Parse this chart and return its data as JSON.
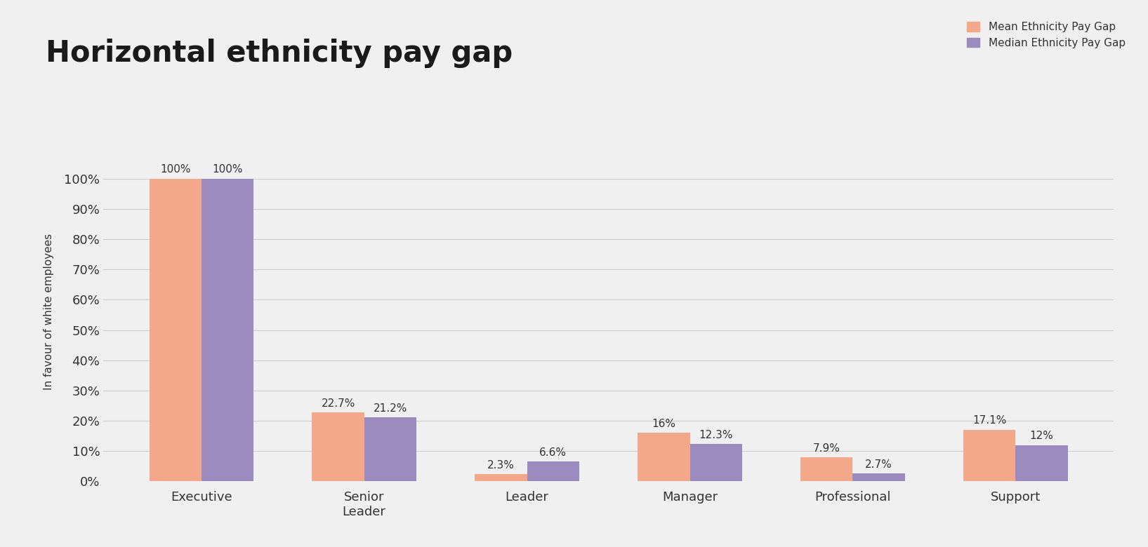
{
  "title": "Horizontal ethnicity pay gap",
  "ylabel": "In favour of white employees",
  "background_color": "#f0f0f0",
  "categories": [
    "Executive",
    "Senior\nLeader",
    "Leader",
    "Manager",
    "Professional",
    "Support"
  ],
  "mean_values": [
    100,
    22.7,
    2.3,
    16,
    7.9,
    17.1
  ],
  "median_values": [
    100,
    21.2,
    6.6,
    12.3,
    2.7,
    12
  ],
  "mean_labels": [
    "100%",
    "22.7%",
    "2.3%",
    "16%",
    "7.9%",
    "17.1%"
  ],
  "median_labels": [
    "100%",
    "21.2%",
    "6.6%",
    "12.3%",
    "2.7%",
    "12%"
  ],
  "mean_color": "#f4a88a",
  "median_color": "#9b8bbf",
  "legend_mean": "Mean Ethnicity Pay Gap",
  "legend_median": "Median Ethnicity Pay Gap",
  "ylim": [
    0,
    112
  ],
  "yticks": [
    0,
    10,
    20,
    30,
    40,
    50,
    60,
    70,
    80,
    90,
    100
  ],
  "ytick_labels": [
    "0%",
    "10%",
    "20%",
    "30%",
    "40%",
    "50%",
    "60%",
    "70%",
    "80%",
    "90%",
    "100%"
  ],
  "bar_width": 0.32,
  "title_fontsize": 30,
  "label_fontsize": 11,
  "tick_fontsize": 13,
  "legend_fontsize": 11,
  "ylabel_fontsize": 11
}
